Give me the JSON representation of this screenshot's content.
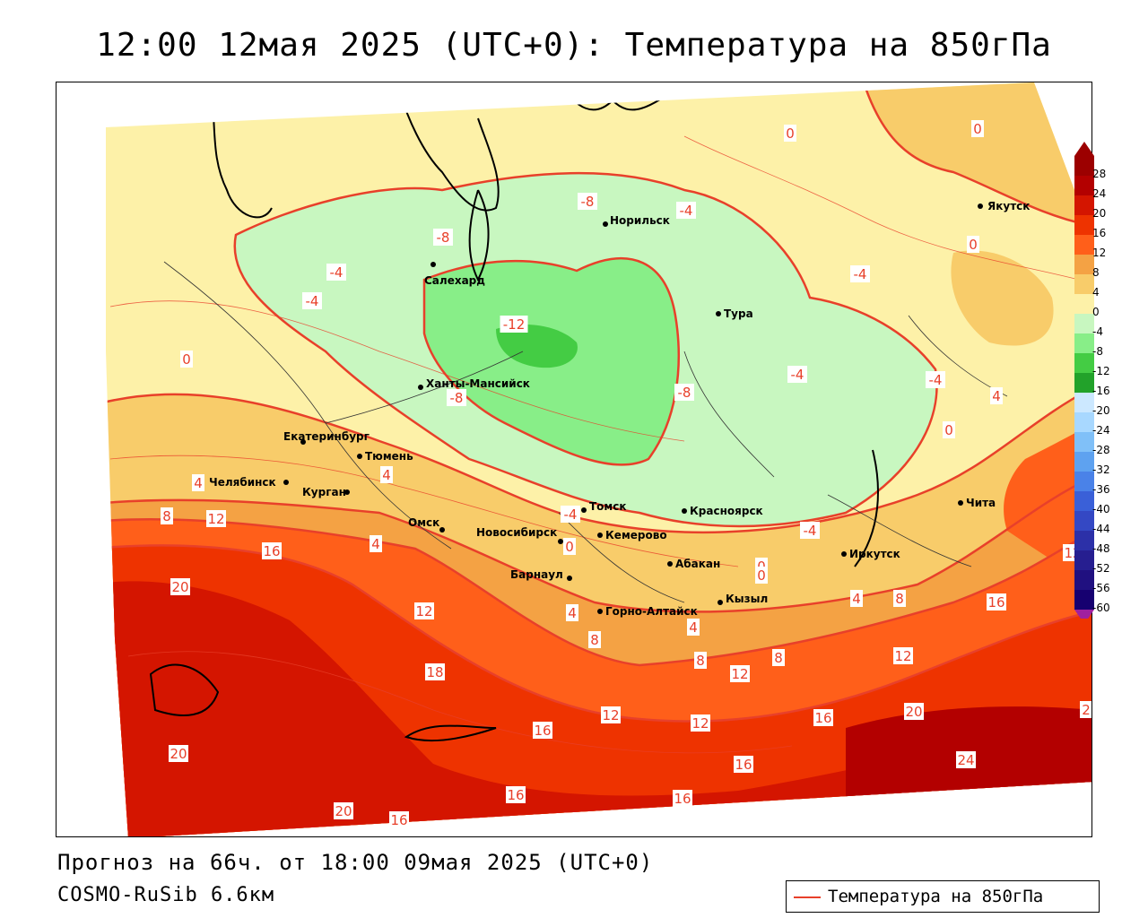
{
  "title": "12:00 12мая 2025 (UTC+0): Температура на 850гПа",
  "forecast_line": "Прогноз на 66ч. от 18:00 09мая 2025 (UTC+0)",
  "model_line": "COSMO-RuSib 6.6км",
  "legend_label": "Температура на 850гПа",
  "colors": {
    "contour_line": "#e8402a",
    "coast_line": "#000000",
    "label_box_text": "#e8402a",
    "city_dot": "#000000"
  },
  "colorbar": {
    "ticks": [
      "28",
      "24",
      "20",
      "16",
      "12",
      "8",
      "4",
      "0",
      "-4",
      "-8",
      "-12",
      "-16",
      "-20",
      "-24",
      "-28",
      "-32",
      "-36",
      "-40",
      "-44",
      "-48",
      "-52",
      "-56",
      "-60"
    ],
    "colors": [
      "#9c0000",
      "#b30000",
      "#d41500",
      "#ee3300",
      "#ff5f1a",
      "#f4a244",
      "#f8cc6a",
      "#fdf1a8",
      "#c8f7c0",
      "#88ee88",
      "#44cc44",
      "#22a22a",
      "#cce8ff",
      "#a8d8ff",
      "#80c0f8",
      "#5ea2f0",
      "#4a82e8",
      "#3a60d8",
      "#3448c4",
      "#2c30a8",
      "#261e90",
      "#201080",
      "#160070"
    ]
  },
  "cities": [
    {
      "name": "Салехард"
    },
    {
      "name": "Норильск"
    },
    {
      "name": "Якутск"
    },
    {
      "name": "Тура"
    },
    {
      "name": "Ханты-Мансийск"
    },
    {
      "name": "Екатеринбург"
    },
    {
      "name": "Тюмень"
    },
    {
      "name": "Челябинск"
    },
    {
      "name": "Курган"
    },
    {
      "name": "Томск"
    },
    {
      "name": "Красноярск"
    },
    {
      "name": "Омск"
    },
    {
      "name": "Новосибирск"
    },
    {
      "name": "Кемерово"
    },
    {
      "name": "Абакан"
    },
    {
      "name": "Иркутск"
    },
    {
      "name": "Чита"
    },
    {
      "name": "Барнаул"
    },
    {
      "name": "Кызыл"
    },
    {
      "name": "Горно-Алтайск"
    }
  ],
  "contour_labels": [
    "0",
    "0",
    "-8",
    "-4",
    "0",
    "-8",
    "-4",
    "-4",
    "-12",
    "-4",
    "0",
    "-8",
    "-4",
    "-8",
    "-4",
    "4",
    "0",
    "4",
    "4",
    "8",
    "12",
    "-4",
    "0",
    "-4",
    "0",
    "12",
    "20",
    "12",
    "4",
    "8",
    "16",
    "8",
    "4",
    "8",
    "12",
    "8",
    "12",
    "18",
    "16",
    "12",
    "12",
    "16",
    "20",
    "2",
    "20",
    "16",
    "16",
    "24",
    "20",
    "16",
    "16",
    "4",
    "4",
    "16",
    "0"
  ]
}
